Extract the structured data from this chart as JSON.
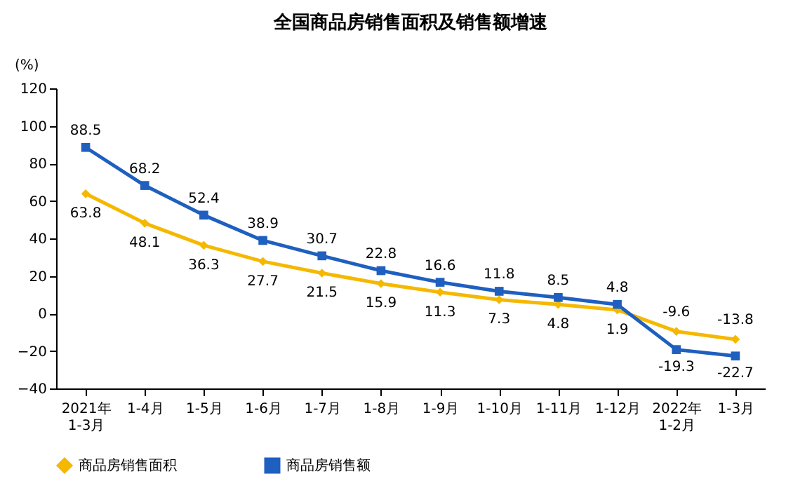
{
  "chart_data": {
    "type": "line",
    "title": "全国商品房销售面积及销售额增速",
    "ylabel": "(%)",
    "categories": [
      "2021年\n1-3月",
      "1-4月",
      "1-5月",
      "1-6月",
      "1-7月",
      "1-8月",
      "1-9月",
      "1-10月",
      "1-11月",
      "1-12月",
      "2022年\n1-2月",
      "1-3月"
    ],
    "series": [
      {
        "name": "商品房销售面积",
        "color": "#f5b800",
        "marker": "diamond",
        "values": [
          63.8,
          48.1,
          36.3,
          27.7,
          21.5,
          15.9,
          11.3,
          7.3,
          4.8,
          1.9,
          -9.6,
          -13.8
        ]
      },
      {
        "name": "商品房销售额",
        "color": "#1f5fbf",
        "marker": "square",
        "values": [
          88.5,
          68.2,
          52.4,
          38.9,
          30.7,
          22.8,
          16.6,
          11.8,
          8.5,
          4.8,
          -19.3,
          -22.7
        ]
      }
    ],
    "ylim": [
      -40,
      120
    ],
    "yticks": [
      -40,
      -20,
      0,
      20,
      40,
      60,
      80,
      100,
      120
    ],
    "grid": false,
    "legend": "bottom",
    "data_labels": true,
    "line_style": "solid"
  }
}
